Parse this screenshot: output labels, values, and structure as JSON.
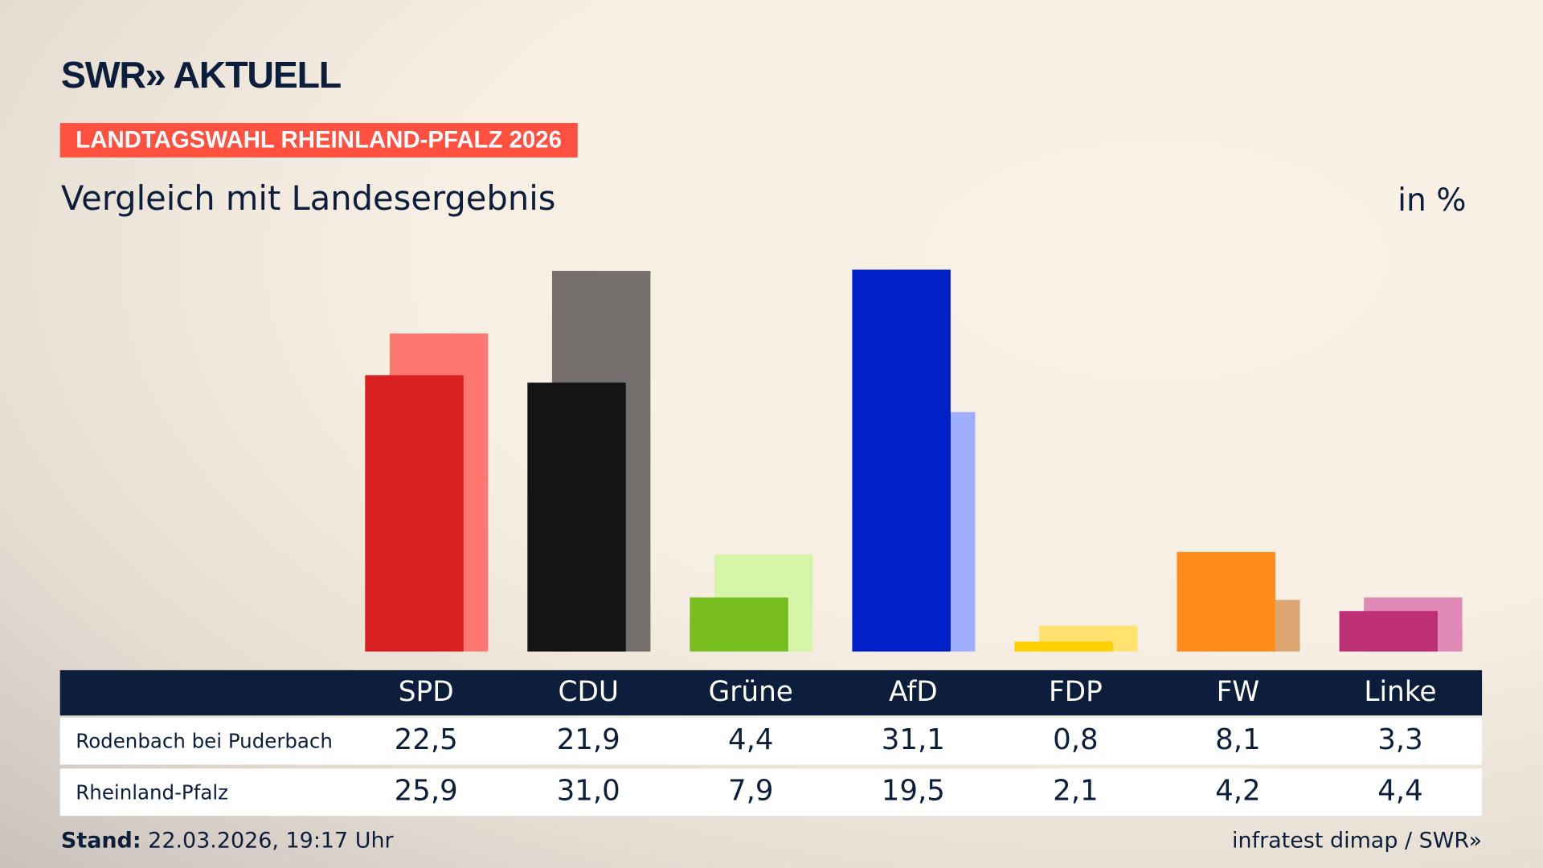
{
  "header": {
    "logo": "SWR» AKTUELL",
    "badge": "LANDTAGSWAHL RHEINLAND-PFALZ 2026",
    "subtitle": "Vergleich mit Landesergebnis",
    "unit": "in %"
  },
  "chart_data": {
    "type": "bar",
    "categories": [
      "SPD",
      "CDU",
      "Grüne",
      "AfD",
      "FDP",
      "FW",
      "Linke"
    ],
    "series": [
      {
        "name": "Rodenbach bei Puderbach",
        "values": [
          22.5,
          21.9,
          4.4,
          31.1,
          0.8,
          8.1,
          3.3
        ],
        "colors": [
          "#d82020",
          "#141414",
          "#78be20",
          "#0020c8",
          "#ffd000",
          "#ff8c1a",
          "#be3075"
        ]
      },
      {
        "name": "Rheinland-Pfalz",
        "values": [
          25.9,
          31.0,
          7.9,
          19.5,
          2.1,
          4.2,
          4.4
        ],
        "colors": [
          "#ff7870",
          "#75706d",
          "#d5f5a8",
          "#a0aeff",
          "#ffe270",
          "#dba671",
          "#e08ab8"
        ]
      }
    ],
    "value_labels": [
      [
        "22,5",
        "21,9",
        "4,4",
        "31,1",
        "0,8",
        "8,1",
        "3,3"
      ],
      [
        "25,9",
        "31,0",
        "7,9",
        "19,5",
        "2,1",
        "4,2",
        "4,4"
      ]
    ],
    "ylim": [
      0,
      31.1
    ]
  },
  "footer": {
    "stand_label": "Stand:",
    "stand_value": " 22.03.2026, 19:17 Uhr",
    "source": "infratest dimap / SWR»"
  }
}
